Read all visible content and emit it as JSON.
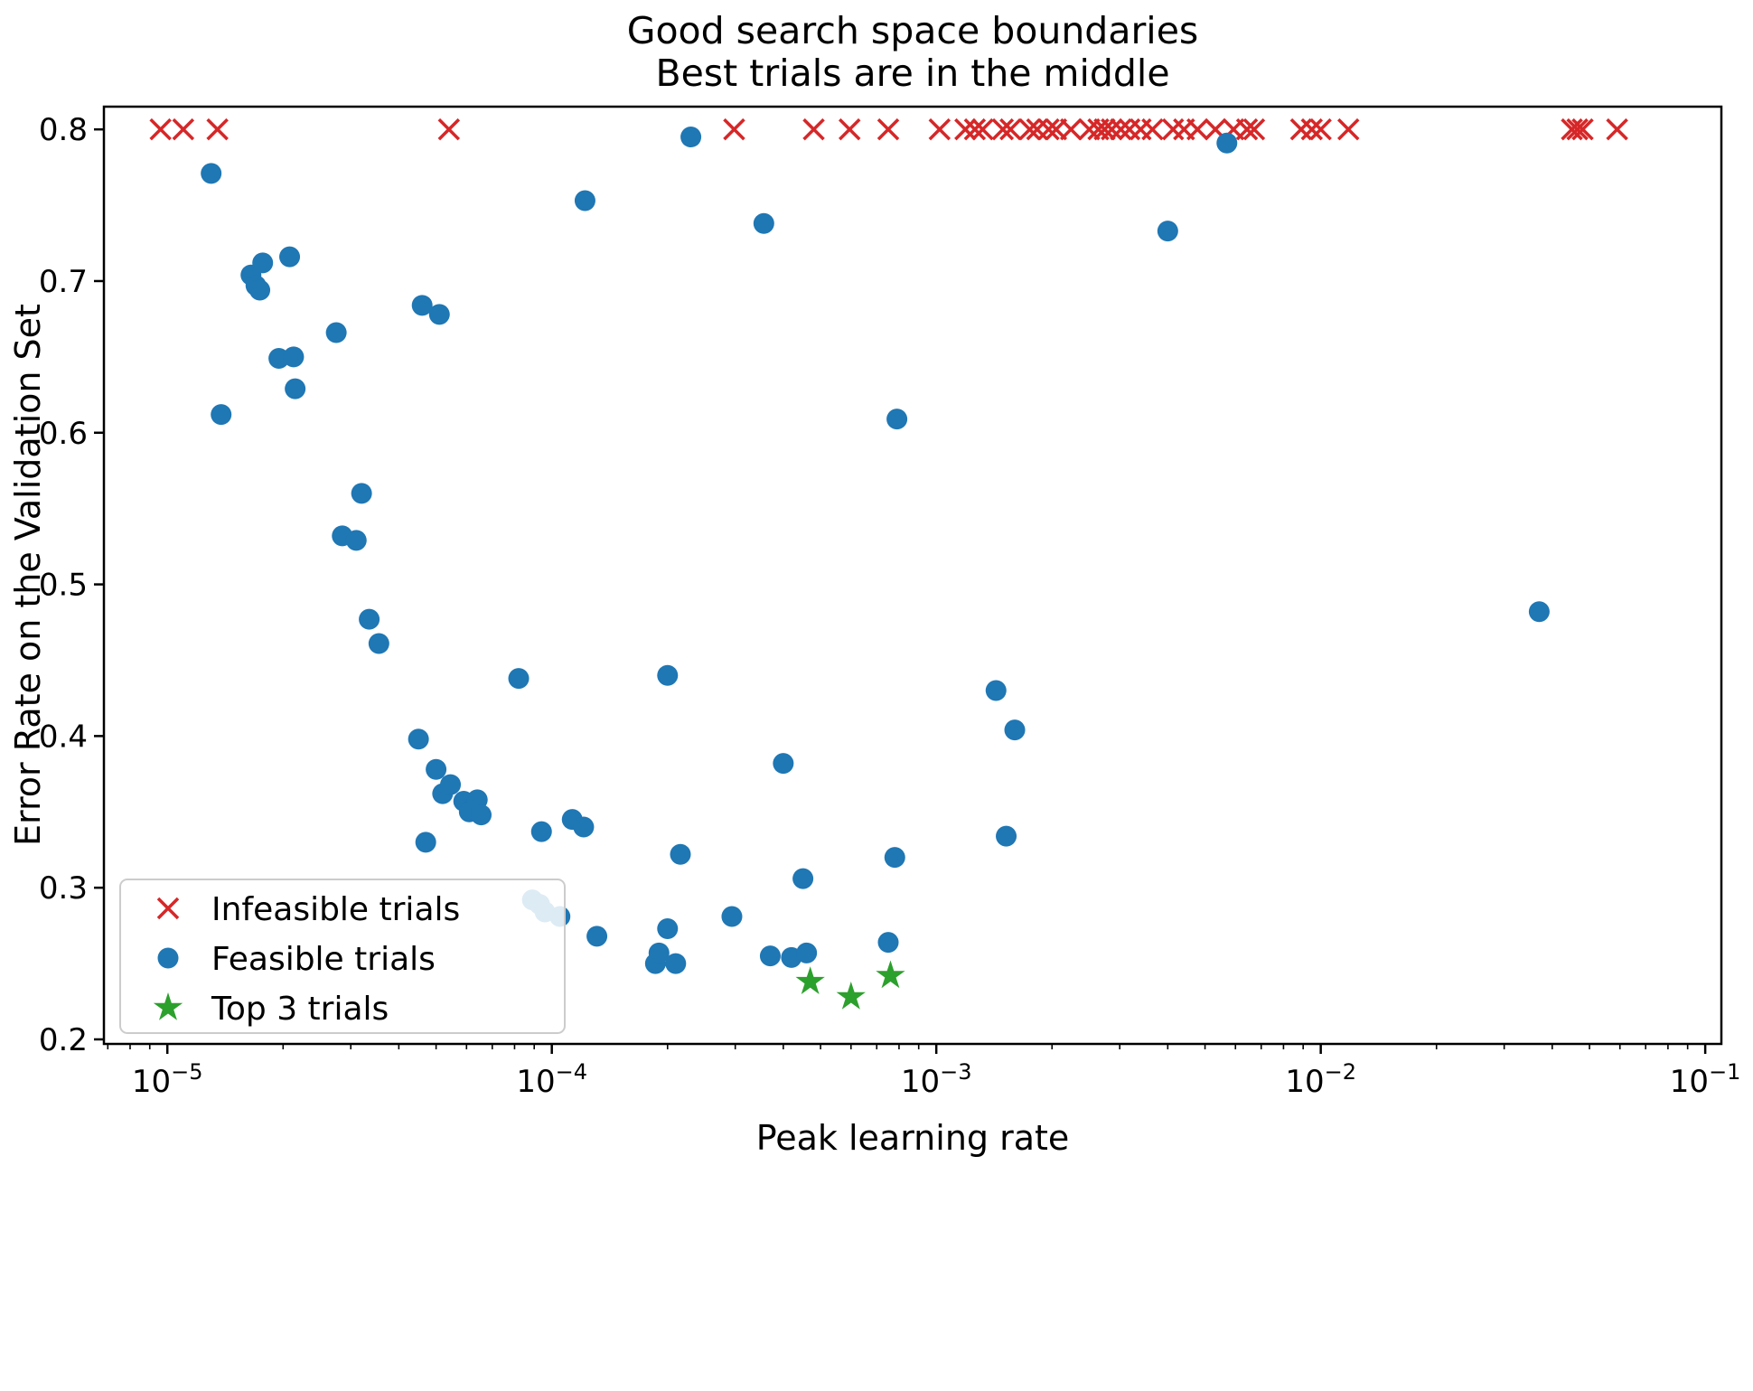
{
  "chart_data": {
    "type": "scatter",
    "title": "Good search space boundaries\nBest trials are in the middle",
    "title_line1": "Good search space boundaries",
    "title_line2": "Best trials are in the middle",
    "xlabel": "Peak learning rate",
    "ylabel": "Error Rate on the Validation Set",
    "x_scale": "log",
    "x_log_range": [
      -5.165,
      -0.958
    ],
    "ylim": [
      0.197,
      0.815
    ],
    "grid": false,
    "x_ticks": [
      {
        "value": 1e-05,
        "base": "10",
        "exp": "−5"
      },
      {
        "value": 0.0001,
        "base": "10",
        "exp": "−4"
      },
      {
        "value": 0.001,
        "base": "10",
        "exp": "−3"
      },
      {
        "value": 0.01,
        "base": "10",
        "exp": "−2"
      },
      {
        "value": 0.1,
        "base": "10",
        "exp": "−1"
      }
    ],
    "y_ticks": [
      0.2,
      0.3,
      0.4,
      0.5,
      0.6,
      0.7,
      0.8
    ],
    "legend": {
      "position": "lower left"
    },
    "series": [
      {
        "name": "Infeasible trials",
        "slug": "infeasible-trial",
        "marker": "x",
        "color": "#d62728",
        "points": [
          [
            9.6e-06,
            0.8
          ],
          [
            1.1e-05,
            0.8
          ],
          [
            1.35e-05,
            0.8
          ],
          [
            5.4e-05,
            0.8
          ],
          [
            0.000298,
            0.8
          ],
          [
            0.00048,
            0.8
          ],
          [
            0.000595,
            0.8
          ],
          [
            0.00075,
            0.8
          ],
          [
            0.00102,
            0.8
          ],
          [
            0.00119,
            0.8
          ],
          [
            0.00126,
            0.8
          ],
          [
            0.00132,
            0.8
          ],
          [
            0.00149,
            0.8
          ],
          [
            0.00156,
            0.8
          ],
          [
            0.00175,
            0.8
          ],
          [
            0.00183,
            0.8
          ],
          [
            0.00196,
            0.8
          ],
          [
            0.00205,
            0.8
          ],
          [
            0.00224,
            0.8
          ],
          [
            0.0025,
            0.8
          ],
          [
            0.00264,
            0.8
          ],
          [
            0.00274,
            0.8
          ],
          [
            0.00286,
            0.8
          ],
          [
            0.00302,
            0.8
          ],
          [
            0.00318,
            0.8
          ],
          [
            0.0034,
            0.8
          ],
          [
            0.00365,
            0.8
          ],
          [
            0.00413,
            0.8
          ],
          [
            0.00441,
            0.8
          ],
          [
            0.00478,
            0.8
          ],
          [
            0.00532,
            0.8
          ],
          [
            0.00593,
            0.8
          ],
          [
            0.00643,
            0.8
          ],
          [
            0.00671,
            0.8
          ],
          [
            0.00889,
            0.8
          ],
          [
            0.00948,
            0.8
          ],
          [
            0.01,
            0.8
          ],
          [
            0.0118,
            0.8
          ],
          [
            0.045,
            0.8
          ],
          [
            0.0465,
            0.8
          ],
          [
            0.048,
            0.8
          ],
          [
            0.059,
            0.8
          ]
        ]
      },
      {
        "name": "Feasible trials",
        "slug": "feasible-trial",
        "marker": "circle",
        "color": "#1f77b4",
        "points": [
          [
            1.3e-05,
            0.771
          ],
          [
            1.38e-05,
            0.612
          ],
          [
            1.65e-05,
            0.704
          ],
          [
            1.7e-05,
            0.697
          ],
          [
            1.74e-05,
            0.694
          ],
          [
            1.77e-05,
            0.712
          ],
          [
            2.08e-05,
            0.716
          ],
          [
            1.95e-05,
            0.649
          ],
          [
            2.13e-05,
            0.65
          ],
          [
            2.15e-05,
            0.629
          ],
          [
            2.75e-05,
            0.666
          ],
          [
            4.6e-05,
            0.684
          ],
          [
            5.1e-05,
            0.678
          ],
          [
            3.2e-05,
            0.56
          ],
          [
            2.85e-05,
            0.532
          ],
          [
            3.1e-05,
            0.529
          ],
          [
            3.35e-05,
            0.477
          ],
          [
            3.55e-05,
            0.461
          ],
          [
            4.5e-05,
            0.398
          ],
          [
            8.2e-05,
            0.438
          ],
          [
            5e-05,
            0.378
          ],
          [
            5.2e-05,
            0.362
          ],
          [
            5.45e-05,
            0.368
          ],
          [
            5.9e-05,
            0.357
          ],
          [
            6.1e-05,
            0.35
          ],
          [
            6.4e-05,
            0.358
          ],
          [
            6.55e-05,
            0.348
          ],
          [
            4.7e-05,
            0.33
          ],
          [
            9.4e-05,
            0.337
          ],
          [
            0.000113,
            0.345
          ],
          [
            0.000121,
            0.34
          ],
          [
            8.9e-05,
            0.292
          ],
          [
            9.3e-05,
            0.289
          ],
          [
            9.6e-05,
            0.284
          ],
          [
            0.000105,
            0.281
          ],
          [
            0.000131,
            0.268
          ],
          [
            0.000122,
            0.753
          ],
          [
            0.000186,
            0.25
          ],
          [
            0.00019,
            0.257
          ],
          [
            0.0002,
            0.273
          ],
          [
            0.00021,
            0.25
          ],
          [
            0.000216,
            0.322
          ],
          [
            0.0002,
            0.44
          ],
          [
            0.00023,
            0.795
          ],
          [
            0.000294,
            0.281
          ],
          [
            0.000356,
            0.738
          ],
          [
            0.00037,
            0.255
          ],
          [
            0.00042,
            0.254
          ],
          [
            0.00046,
            0.257
          ],
          [
            0.0004,
            0.382
          ],
          [
            0.00045,
            0.306
          ],
          [
            0.00075,
            0.264
          ],
          [
            0.00078,
            0.32
          ],
          [
            0.00079,
            0.609
          ],
          [
            0.00143,
            0.43
          ],
          [
            0.0016,
            0.404
          ],
          [
            0.00152,
            0.334
          ],
          [
            0.004,
            0.733
          ],
          [
            0.0057,
            0.791
          ],
          [
            0.037,
            0.482
          ]
        ]
      },
      {
        "name": "Top 3 trials",
        "slug": "top-trial",
        "marker": "star",
        "color": "#2ca02c",
        "points": [
          [
            0.00047,
            0.238
          ],
          [
            0.0006,
            0.228
          ],
          [
            0.00076,
            0.242
          ]
        ]
      }
    ]
  }
}
